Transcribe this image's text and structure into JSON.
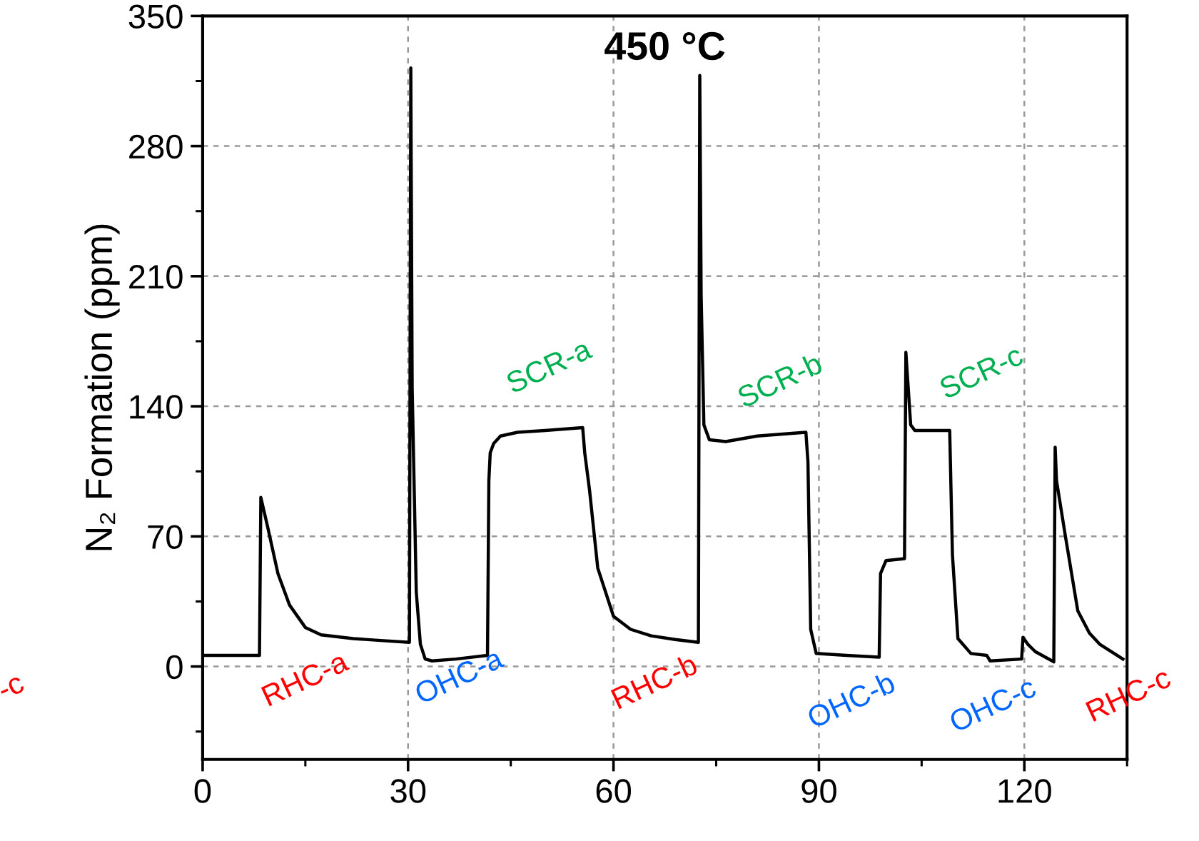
{
  "chart_data": {
    "type": "line",
    "title": "450 °C",
    "ylabel": "N₂ Formation (ppm)",
    "xlim": [
      0,
      135
    ],
    "xticks": [
      0,
      30,
      60,
      90,
      120
    ],
    "ylim": [
      -50,
      350
    ],
    "yticks": [
      0,
      70,
      140,
      210,
      280,
      350
    ],
    "grid": true,
    "marker": "none",
    "line_style": "solid",
    "series": [
      {
        "color": "#000000",
        "x": [
          0,
          4,
          8.3,
          8.5,
          9.5,
          11,
          12.7,
          15,
          17.3,
          22,
          26,
          30.2,
          30.4,
          30.6,
          31.2,
          31.8,
          32.5,
          33.5,
          37,
          41.6,
          41.8,
          42,
          42.5,
          43.5,
          46,
          50,
          55.5,
          55.8,
          56.5,
          57.7,
          60,
          62.5,
          65.5,
          69,
          72.4,
          72.6,
          72.8,
          73.2,
          74,
          76.4,
          81,
          88.1,
          88.4,
          88.8,
          89.6,
          94,
          98.8,
          99,
          99.8,
          102.5,
          102.7,
          103.4,
          104,
          109.1,
          109.5,
          110.3,
          112.2,
          114.5,
          115,
          119.6,
          119.8,
          120.5,
          121.6,
          124.3,
          124.5,
          124.7,
          126,
          127.8,
          129.5,
          131,
          134.4
        ],
        "values": [
          6,
          6,
          6,
          91,
          75,
          50,
          33,
          21,
          17,
          15,
          14,
          13,
          322,
          150,
          40,
          12,
          4,
          3,
          4,
          6,
          100,
          115,
          120,
          124,
          126,
          127,
          128.5,
          115,
          95,
          53,
          27,
          20,
          16.5,
          14.5,
          13,
          318,
          200,
          130,
          122,
          121,
          124,
          126,
          110,
          20,
          7,
          6,
          5,
          50,
          57,
          58,
          169,
          130,
          127,
          127,
          60,
          15,
          7,
          6,
          3,
          4,
          15.7,
          12,
          8,
          2.5,
          118,
          100,
          70,
          30,
          18,
          12,
          4
        ]
      }
    ],
    "annotations": [
      "-c",
      "RHC-a",
      "OHC-a",
      "SCR-a",
      "RHC-b",
      "SCR-b",
      "OHC-b",
      "SCR-c",
      "OHC-c",
      "RHC-c"
    ]
  }
}
